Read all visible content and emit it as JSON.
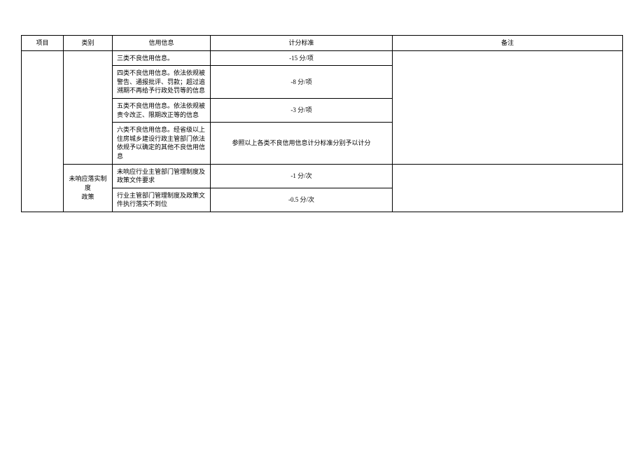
{
  "headers": {
    "project": "项目",
    "category": "类别",
    "credit_info": "信用信息",
    "standard": "计分标准",
    "remark": "备注"
  },
  "category_group1_hidden": "",
  "category_group2": "未响应落实制度\n政策",
  "rows": [
    {
      "credit": "三类不良信用信息。",
      "standard": "-15 分/项"
    },
    {
      "credit": "四类不良信用信息。依法依规被警告、通报批评、罚款；超过追溯期不再给予行政处罚等的信息",
      "standard": "-8 分/项"
    },
    {
      "credit": "五类不良信用信息。依法依规被责令改正、限期改正等的信息",
      "standard": "-3 分/项"
    },
    {
      "credit": "六类不良信用信息。经省级以上住房城乡建设行政主管部门依法依规予以确定的其他不良信用信息",
      "standard": "参照以上各类不良信用信息计分标准分别予以计分"
    },
    {
      "credit": "未响应行业主管部门管理制度及政策文件要求",
      "standard": "-1 分/次"
    },
    {
      "credit": "行业主管部门管理制度及政策文件执行落实不到位",
      "standard": "-0.5 分/次"
    }
  ]
}
